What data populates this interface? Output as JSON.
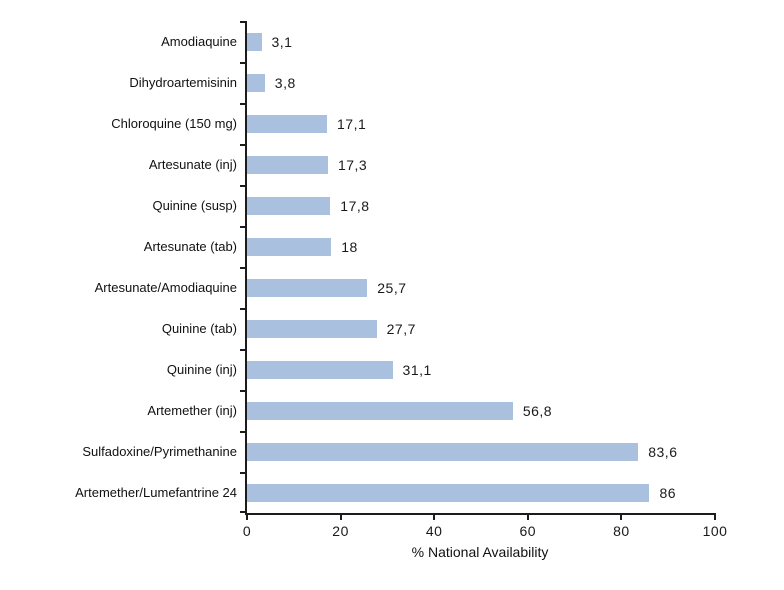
{
  "chart_data": {
    "type": "bar",
    "orientation": "horizontal",
    "title": "",
    "xlabel": "% National Availability",
    "ylabel": "",
    "xlim": [
      0,
      100
    ],
    "x_ticks": [
      "0",
      "20",
      "40",
      "60",
      "80",
      "100"
    ],
    "x_tick_values": [
      0,
      20,
      40,
      60,
      80,
      100
    ],
    "grid": false,
    "legend": false,
    "categories": [
      "Amodiaquine",
      "Dihydroartemisinin",
      "Chloroquine (150 mg)",
      "Artesunate (inj)",
      "Quinine (susp)",
      "Artesunate (tab)",
      "Artesunate/Amodiaquine",
      "Quinine (tab)",
      "Quinine (inj)",
      "Artemether (inj)",
      "Sulfadoxine/Pyrimethanine",
      "Artemether/Lumefantrine 24"
    ],
    "values": [
      3.1,
      3.8,
      17.1,
      17.3,
      17.8,
      18,
      25.7,
      27.7,
      31.1,
      56.8,
      83.6,
      86
    ],
    "value_labels": [
      "3,1",
      "3,8",
      "17,1",
      "17,3",
      "17,8",
      "18",
      "25,7",
      "27,7",
      "31,1",
      "56,8",
      "83,6",
      "86"
    ],
    "colors": {
      "bar": "#a9c0de",
      "axis": "#1c1c1c",
      "text": "#111111",
      "background": "#ffffff"
    }
  }
}
